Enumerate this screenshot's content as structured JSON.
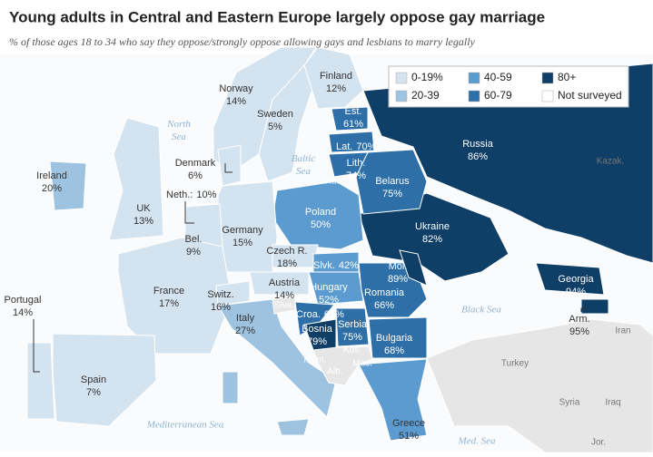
{
  "title": "Young adults in Central and Eastern Europe largely oppose gay marriage",
  "subtitle": "% of those ages 18 to 34 who say they oppose/strongly oppose allowing gays and lesbians to marry legally",
  "legend": [
    "0-19%",
    "40-59",
    "80+",
    "20-39",
    "60-79",
    "Not surveyed"
  ],
  "countries": [
    {
      "name": "Finland",
      "value": "12%"
    },
    {
      "name": "Norway",
      "value": "14%"
    },
    {
      "name": "Sweden",
      "value": "5%"
    },
    {
      "name": "Est.",
      "value": "61%"
    },
    {
      "name": "Denmark",
      "value": "6%"
    },
    {
      "name": "Ireland",
      "value": "20%"
    },
    {
      "name": "UK",
      "value": "13%"
    },
    {
      "name": "Neth.:",
      "value": "10%"
    },
    {
      "name": "Bel.",
      "value": "9%"
    },
    {
      "name": "Germany",
      "value": "15%"
    },
    {
      "name": "Poland",
      "value": "50%"
    },
    {
      "name": "Lat.",
      "value": "70%"
    },
    {
      "name": "Lith.",
      "value": "74%"
    },
    {
      "name": "Belarus",
      "value": "75%"
    },
    {
      "name": "Russia",
      "value": "86%"
    },
    {
      "name": "Ukraine",
      "value": "82%"
    },
    {
      "name": "Czech R.",
      "value": "18%"
    },
    {
      "name": "Slvk.",
      "value": "42%"
    },
    {
      "name": "Austria",
      "value": "14%"
    },
    {
      "name": "Hungary",
      "value": "52%"
    },
    {
      "name": "Mol.",
      "value": "89%"
    },
    {
      "name": "Romania",
      "value": "66%"
    },
    {
      "name": "France",
      "value": "17%"
    },
    {
      "name": "Switz.",
      "value": "16%"
    },
    {
      "name": "Italy",
      "value": "27%"
    },
    {
      "name": "Croa.",
      "value": "61%"
    },
    {
      "name": "Bosnia",
      "value": "79%"
    },
    {
      "name": "Serbia",
      "value": "75%"
    },
    {
      "name": "Bulgaria",
      "value": "68%"
    },
    {
      "name": "Georgia",
      "value": "94%"
    },
    {
      "name": "Arm.",
      "value": "95%"
    },
    {
      "name": "Portugal",
      "value": "14%"
    },
    {
      "name": "Spain",
      "value": "7%"
    },
    {
      "name": "Greece",
      "value": "51%"
    }
  ],
  "places": [
    "Rus.",
    "Slva.",
    "Mont.",
    "Kos.",
    "Alb.",
    "Mac.",
    "Kazak.",
    "Iran",
    "Turkey",
    "Syria",
    "Iraq",
    "Jor."
  ],
  "seas": [
    "North Sea",
    "Baltic Sea",
    "Black Sea",
    "Mediterranean Sea",
    "Med. Sea"
  ]
}
